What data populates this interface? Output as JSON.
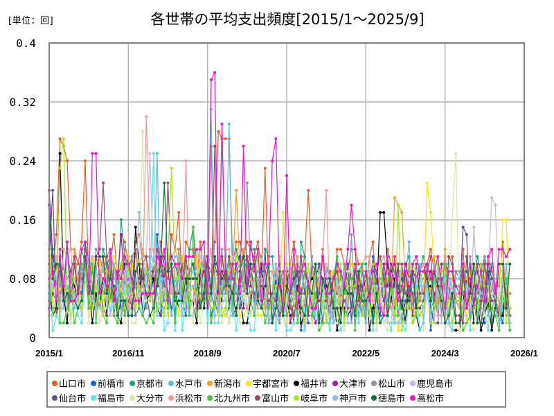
{
  "header": {
    "unit_label": "[単位：回]",
    "title": "各世帯の平均支出頻度[2015/1～2025/9]"
  },
  "chart_data": {
    "type": "line",
    "title": "各世帯の平均支出頻度[2015/1～2025/9]",
    "xlabel": "",
    "ylabel": "[単位：回]",
    "ylim": [
      0,
      0.4
    ],
    "yticks": [
      "0",
      "0.08",
      "0.16",
      "0.24",
      "0.32",
      "0.4"
    ],
    "ytick_values": [
      0,
      0.08,
      0.16,
      0.24,
      0.32,
      0.4
    ],
    "xticks": [
      "2015/1",
      "2016/11",
      "2018/9",
      "2020/7",
      "2022/5",
      "2024/3",
      "2026/1"
    ],
    "xtick_month_index": [
      0,
      22,
      44,
      66,
      88,
      110,
      132
    ],
    "x_start": "2015/1",
    "x_end": "2025/9",
    "n_points": 129,
    "grid": true,
    "legend_position": "bottom",
    "series": [
      {
        "name": "山口市",
        "color": "#f15a22",
        "peaks": [
          [
            3,
            0.27
          ],
          [
            4,
            0.26
          ],
          [
            5,
            0.24
          ],
          [
            10,
            0.24
          ],
          [
            36,
            0.17
          ],
          [
            47,
            0.28
          ],
          [
            48,
            0.27
          ],
          [
            49,
            0.27
          ],
          [
            50,
            0.27
          ],
          [
            60,
            0.23
          ],
          [
            72,
            0.2
          ],
          [
            95,
            0.1
          ]
        ],
        "base": 0.1,
        "seed": 1
      },
      {
        "name": "前橋市",
        "color": "#1f5fd8",
        "peaks": [
          [
            10,
            0.13
          ],
          [
            30,
            0.14
          ],
          [
            60,
            0.12
          ],
          [
            90,
            0.11
          ]
        ],
        "base": 0.07,
        "seed": 2
      },
      {
        "name": "京都市",
        "color": "#1fa07a",
        "peaks": [
          [
            20,
            0.16
          ],
          [
            40,
            0.15
          ],
          [
            70,
            0.13
          ]
        ],
        "base": 0.08,
        "seed": 3
      },
      {
        "name": "水戸市",
        "color": "#5bb8f0",
        "peaks": [
          [
            45,
            0.31
          ],
          [
            50,
            0.29
          ],
          [
            30,
            0.25
          ],
          [
            100,
            0.13
          ]
        ],
        "base": 0.07,
        "seed": 4
      },
      {
        "name": "新潟市",
        "color": "#f0a020",
        "peaks": [
          [
            52,
            0.2
          ],
          [
            96,
            0.19
          ],
          [
            97,
            0.18
          ],
          [
            98,
            0.17
          ],
          [
            110,
            0.12
          ]
        ],
        "base": 0.08,
        "seed": 5
      },
      {
        "name": "宇都宮市",
        "color": "#ffe600",
        "peaks": [
          [
            65,
            0.17
          ],
          [
            105,
            0.21
          ],
          [
            106,
            0.17
          ],
          [
            126,
            0.16
          ],
          [
            127,
            0.16
          ]
        ],
        "base": 0.07,
        "seed": 6
      },
      {
        "name": "福井市",
        "color": "#000000",
        "peaks": [
          [
            3,
            0.25
          ],
          [
            92,
            0.17
          ],
          [
            93,
            0.17
          ],
          [
            24,
            0.15
          ]
        ],
        "base": 0.06,
        "seed": 7
      },
      {
        "name": "大津市",
        "color": "#9b1a9b",
        "peaks": [
          [
            0,
            0.2
          ],
          [
            20,
            0.14
          ],
          [
            60,
            0.1
          ]
        ],
        "base": 0.07,
        "seed": 8
      },
      {
        "name": "松山市",
        "color": "#8c96a0",
        "peaks": [
          [
            45,
            0.26
          ],
          [
            55,
            0.21
          ],
          [
            84,
            0.14
          ]
        ],
        "base": 0.08,
        "seed": 9
      },
      {
        "name": "鹿児島市",
        "color": "#c8b4e6",
        "peaks": [
          [
            28,
            0.25
          ],
          [
            123,
            0.19
          ],
          [
            124,
            0.18
          ],
          [
            118,
            0.15
          ]
        ],
        "base": 0.07,
        "seed": 10
      },
      {
        "name": "仙台市",
        "color": "#5a4ea0",
        "peaks": [
          [
            115,
            0.15
          ],
          [
            116,
            0.14
          ],
          [
            1,
            0.2
          ]
        ],
        "base": 0.07,
        "seed": 11
      },
      {
        "name": "福島市",
        "color": "#5ae6f0",
        "peaks": [
          [
            29,
            0.25
          ],
          [
            70,
            0.12
          ]
        ],
        "base": 0.05,
        "seed": 12
      },
      {
        "name": "大分市",
        "color": "#dce6a8",
        "peaks": [
          [
            26,
            0.28
          ],
          [
            113,
            0.25
          ],
          [
            112,
            0.16
          ]
        ],
        "base": 0.06,
        "seed": 13
      },
      {
        "name": "浜松市",
        "color": "#f09a96",
        "peaks": [
          [
            27,
            0.3
          ],
          [
            38,
            0.24
          ],
          [
            77,
            0.2
          ]
        ],
        "base": 0.08,
        "seed": 14
      },
      {
        "name": "北九州市",
        "color": "#46c83c",
        "peaks": [
          [
            40,
            0.15
          ],
          [
            80,
            0.11
          ]
        ],
        "base": 0.06,
        "seed": 15
      },
      {
        "name": "富山市",
        "color": "#a04a64",
        "peaks": [
          [
            33,
            0.21
          ],
          [
            46,
            0.26
          ],
          [
            15,
            0.21
          ]
        ],
        "base": 0.08,
        "seed": 16
      },
      {
        "name": "岐阜市",
        "color": "#a6e628",
        "peaks": [
          [
            4,
            0.27
          ],
          [
            3,
            0.23
          ],
          [
            34,
            0.23
          ],
          [
            97,
            0.18
          ]
        ],
        "base": 0.07,
        "seed": 17
      },
      {
        "name": "神戸市",
        "color": "#8cbce0",
        "peaks": [
          [
            48,
            0.26
          ],
          [
            25,
            0.17
          ]
        ],
        "base": 0.07,
        "seed": 18
      },
      {
        "name": "徳島市",
        "color": "#146e3c",
        "peaks": [
          [
            32,
            0.21
          ],
          [
            0,
            0.18
          ]
        ],
        "base": 0.07,
        "seed": 19
      },
      {
        "name": "高松市",
        "color": "#f014c8",
        "peaks": [
          [
            45,
            0.35
          ],
          [
            46,
            0.36
          ],
          [
            48,
            0.29
          ],
          [
            54,
            0.26
          ],
          [
            62,
            0.24
          ],
          [
            63,
            0.27
          ],
          [
            66,
            0.22
          ],
          [
            12,
            0.25
          ],
          [
            13,
            0.25
          ],
          [
            84,
            0.18
          ]
        ],
        "base": 0.09,
        "seed": 20
      }
    ]
  },
  "legend": {
    "rows": [
      [
        "山口市",
        "前橋市",
        "京都市",
        "水戸市",
        "新潟市",
        "宇都宮市",
        "福井市",
        "大津市",
        "松山市",
        "鹿児島市"
      ],
      [
        "仙台市",
        "福島市",
        "大分市",
        "浜松市",
        "北九州市",
        "富山市",
        "岐阜市",
        "神戸市",
        "徳島市",
        "高松市"
      ]
    ]
  }
}
